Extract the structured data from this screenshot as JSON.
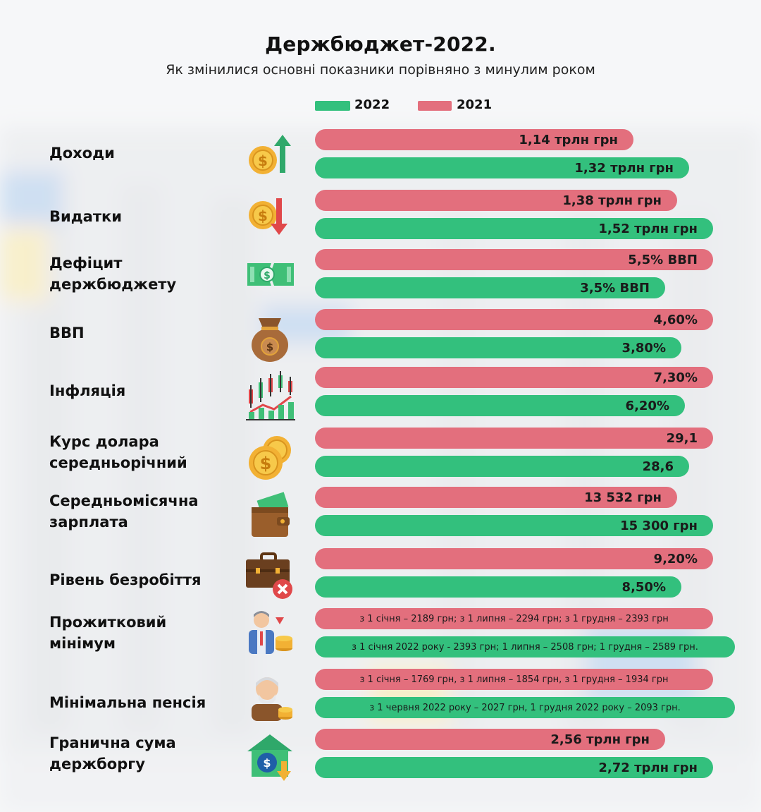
{
  "header": {
    "title": "Держбюджет-2022.",
    "subtitle": "Як змінилися основні показники порівняно з минулим роком"
  },
  "legend": [
    {
      "label": "2022",
      "color": "#33c07d"
    },
    {
      "label": "2021",
      "color": "#e36f7d"
    }
  ],
  "colors": {
    "y2021": "#e36f7d",
    "y2022": "#33c07d"
  },
  "chart_data": {
    "type": "bar",
    "orientation": "horizontal",
    "title": "Держбюджет-2022.",
    "subtitle": "Як змінилися основні показники порівняно з минулим роком",
    "legend_position": "top",
    "series": [
      {
        "name": "2021",
        "color": "#e36f7d"
      },
      {
        "name": "2022",
        "color": "#33c07d"
      }
    ],
    "rows": [
      {
        "label": "Доходи",
        "icon": "coin-arrow-up-icon",
        "v2021": {
          "text": "1,14 трлн грн",
          "fill": 0.8
        },
        "v2022": {
          "text": "1,32 трлн грн",
          "fill": 0.94
        }
      },
      {
        "label": "Видатки",
        "icon": "coin-arrow-down-icon",
        "v2021": {
          "text": "1,38 трлн грн",
          "fill": 0.91
        },
        "v2022": {
          "text": "1,52 трлн грн",
          "fill": 1.0
        }
      },
      {
        "label": "Дефіцит\nдержбюджету",
        "icon": "torn-banknote-icon",
        "v2021": {
          "text": "5,5% ВВП",
          "fill": 1.0
        },
        "v2022": {
          "text": "3,5% ВВП",
          "fill": 0.88
        }
      },
      {
        "label": "ВВП",
        "icon": "money-bag-icon",
        "v2021": {
          "text": "4,60%",
          "fill": 1.0
        },
        "v2022": {
          "text": "3,80%",
          "fill": 0.92
        }
      },
      {
        "label": "Інфляція",
        "icon": "candlestick-chart-icon",
        "v2021": {
          "text": "7,30%",
          "fill": 1.0
        },
        "v2022": {
          "text": "6,20%",
          "fill": 0.93
        }
      },
      {
        "label": "Курс долара\nсередньорічний",
        "icon": "coins-stack-icon",
        "v2021": {
          "text": "29,1",
          "fill": 1.0
        },
        "v2022": {
          "text": "28,6",
          "fill": 0.94
        }
      },
      {
        "label": "Середньомісячна\nзарплата",
        "icon": "wallet-icon",
        "v2021": {
          "text": "13 532 грн",
          "fill": 0.91
        },
        "v2022": {
          "text": "15 300 грн",
          "fill": 1.0
        }
      },
      {
        "label": "Рівень безробіття",
        "icon": "briefcase-cross-icon",
        "v2021": {
          "text": "9,20%",
          "fill": 1.0
        },
        "v2022": {
          "text": "8,50%",
          "fill": 0.92
        }
      },
      {
        "label": "Прожитковий\nмінімум",
        "icon": "person-coins-icon",
        "v2021": {
          "text": "з 1 січня – 2189 грн; з 1 липня – 2294 грн; з 1 грудня – 2393 грн",
          "fill": 1.0
        },
        "v2022": {
          "text": "з 1 січня 2022 року - 2393 грн; 1 липня – 2508 грн; 1 грудня – 2589 грн.",
          "fill": 1.055
        }
      },
      {
        "label": "Мінімальна пенсія",
        "icon": "elderly-person-icon",
        "v2021": {
          "text": "з 1 січня – 1769 грн, з 1 липня – 1854 грн, з 1 грудня – 1934 грн",
          "fill": 1.0
        },
        "v2022": {
          "text": "з 1 червня 2022 року – 2027 грн,  1 грудня 2022 року – 2093 грн.",
          "fill": 1.055
        }
      },
      {
        "label": "Гранична сума\nдержборгу",
        "icon": "debt-house-icon",
        "v2021": {
          "text": "2,56 трлн грн",
          "fill": 0.88
        },
        "v2022": {
          "text": "2,72 трлн грн",
          "fill": 1.0
        }
      }
    ]
  }
}
